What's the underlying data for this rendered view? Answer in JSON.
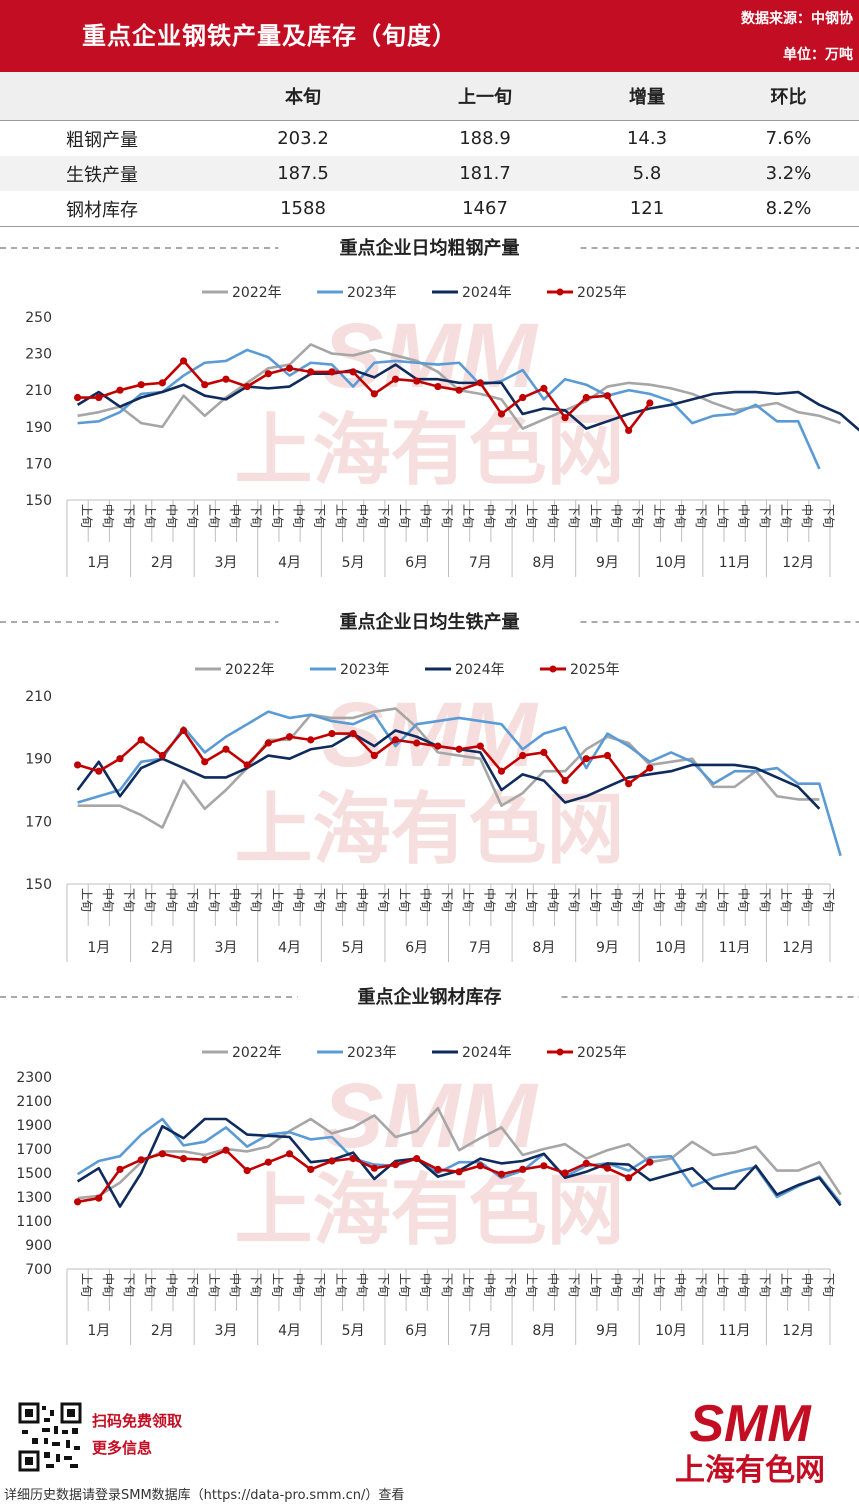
{
  "header": {
    "title": "重点企业钢铁产量及库存（旬度）",
    "source": "数据来源：中钢协",
    "unit": "单位：万吨"
  },
  "summary": {
    "columns": [
      "",
      "本旬",
      "上一旬",
      "增量",
      "环比"
    ],
    "rows": [
      {
        "name": "粗钢产量",
        "current": "203.2",
        "previous": "188.9",
        "delta": "14.3",
        "ratio": "7.6%"
      },
      {
        "name": "生铁产量",
        "current": "187.5",
        "previous": "181.7",
        "delta": "5.8",
        "ratio": "3.2%"
      },
      {
        "name": "钢材库存",
        "current": "1588",
        "previous": "1467",
        "delta": "121",
        "ratio": "8.2%"
      }
    ]
  },
  "colors": {
    "brand": "#c30d23",
    "y2022": "#a6a6a6",
    "y2023": "#5b9bd5",
    "y2024": "#0f2a5c",
    "y2025": "#c00000"
  },
  "xaxis": {
    "ten_day": [
      "上旬",
      "中旬",
      "下旬"
    ],
    "months": [
      "1月",
      "2月",
      "3月",
      "4月",
      "5月",
      "6月",
      "7月",
      "8月",
      "9月",
      "10月",
      "11月",
      "12月"
    ]
  },
  "watermark": {
    "brand": "SMM",
    "cn": "上海有色网"
  },
  "chart_data": [
    {
      "type": "line",
      "title": "重点企业日均粗钢产量",
      "ylim": [
        150,
        250
      ],
      "yticks": [
        150,
        170,
        190,
        210,
        230,
        250
      ],
      "legend": "top",
      "series": [
        {
          "name": "2022年",
          "values": [
            196,
            198,
            201,
            192,
            190,
            207,
            196,
            206,
            214,
            222,
            224,
            235,
            230,
            229,
            232,
            229,
            226,
            220,
            210,
            208,
            205,
            189,
            194,
            199,
            204,
            212,
            214,
            213,
            211,
            208,
            203,
            199,
            201,
            203,
            198,
            196,
            192
          ]
        },
        {
          "name": "2023年",
          "values": [
            192,
            193,
            198,
            208,
            209,
            218,
            225,
            226,
            232,
            228,
            218,
            225,
            224,
            212,
            225,
            226,
            225,
            224,
            225,
            213,
            215,
            221,
            205,
            216,
            213,
            207,
            210,
            208,
            204,
            192,
            196,
            197,
            202,
            193,
            193,
            167
          ]
        },
        {
          "name": "2024年",
          "values": [
            202,
            209,
            201,
            206,
            209,
            213,
            207,
            205,
            212,
            211,
            212,
            219,
            219,
            221,
            217,
            224,
            216,
            216,
            214,
            214,
            214,
            197,
            200,
            199,
            189,
            193,
            197,
            200,
            202,
            205,
            208,
            209,
            209,
            208,
            209,
            202,
            197,
            187
          ]
        },
        {
          "name": "2025年",
          "values": [
            206,
            206,
            210,
            213,
            214,
            226,
            213,
            216,
            212,
            219,
            222,
            220,
            220,
            220,
            208,
            216,
            215,
            212,
            210,
            214,
            197,
            206,
            211,
            195,
            206,
            207,
            188,
            203
          ]
        }
      ]
    },
    {
      "type": "line",
      "title": "重点企业日均生铁产量",
      "ylim": [
        150,
        210
      ],
      "yticks": [
        150,
        170,
        190,
        210
      ],
      "legend": "top",
      "series": [
        {
          "name": "2022年",
          "values": [
            175,
            175,
            175,
            172,
            168,
            183,
            174,
            180,
            187,
            196,
            196,
            204,
            203,
            203,
            205,
            206,
            200,
            192,
            191,
            190,
            175,
            179,
            186,
            186,
            193,
            197,
            195,
            188,
            189,
            190,
            181,
            181,
            186,
            178,
            177,
            177
          ]
        },
        {
          "name": "2023年",
          "values": [
            176,
            178,
            180,
            189,
            190,
            200,
            192,
            197,
            201,
            205,
            203,
            204,
            202,
            201,
            204,
            194,
            201,
            202,
            203,
            202,
            201,
            193,
            198,
            200,
            187,
            198,
            194,
            189,
            192,
            189,
            182,
            186,
            186,
            187,
            182,
            182,
            159
          ]
        },
        {
          "name": "2024年",
          "values": [
            180,
            189,
            178,
            187,
            190,
            187,
            184,
            184,
            187,
            191,
            190,
            193,
            194,
            198,
            194,
            199,
            197,
            194,
            193,
            192,
            180,
            185,
            183,
            176,
            178,
            181,
            184,
            185,
            186,
            188,
            188,
            188,
            187,
            184,
            181,
            174
          ]
        },
        {
          "name": "2025年",
          "values": [
            188,
            186,
            190,
            196,
            191,
            199,
            189,
            193,
            188,
            195,
            197,
            196,
            198,
            198,
            191,
            196,
            195,
            194,
            193,
            194,
            186,
            191,
            192,
            183,
            190,
            191,
            182,
            187
          ]
        }
      ]
    },
    {
      "type": "line",
      "title": "重点企业钢材库存",
      "ylim": [
        700,
        2300
      ],
      "yticks": [
        700,
        900,
        1100,
        1300,
        1500,
        1700,
        1900,
        2100,
        2300
      ],
      "legend": "top",
      "series": [
        {
          "name": "2022年",
          "values": [
            1290,
            1310,
            1420,
            1590,
            1680,
            1680,
            1650,
            1700,
            1680,
            1720,
            1850,
            1950,
            1830,
            1880,
            1980,
            1800,
            1850,
            2040,
            1690,
            1790,
            1880,
            1650,
            1700,
            1740,
            1620,
            1690,
            1740,
            1590,
            1620,
            1760,
            1650,
            1670,
            1720,
            1520,
            1520,
            1590,
            1320
          ]
        },
        {
          "name": "2023年",
          "values": [
            1490,
            1600,
            1640,
            1820,
            1950,
            1730,
            1760,
            1880,
            1720,
            1820,
            1840,
            1780,
            1800,
            1620,
            1570,
            1560,
            1620,
            1500,
            1590,
            1590,
            1460,
            1520,
            1660,
            1470,
            1560,
            1580,
            1520,
            1630,
            1640,
            1390,
            1460,
            1510,
            1550,
            1300,
            1390,
            1470,
            1250
          ]
        },
        {
          "name": "2024年",
          "values": [
            1430,
            1540,
            1220,
            1500,
            1890,
            1790,
            1950,
            1950,
            1820,
            1810,
            1800,
            1590,
            1610,
            1670,
            1450,
            1600,
            1620,
            1470,
            1520,
            1620,
            1580,
            1600,
            1660,
            1460,
            1510,
            1580,
            1570,
            1440,
            1490,
            1540,
            1370,
            1370,
            1560,
            1320,
            1400,
            1460,
            1230
          ]
        },
        {
          "name": "2025年",
          "values": [
            1260,
            1290,
            1530,
            1610,
            1660,
            1620,
            1610,
            1690,
            1520,
            1590,
            1660,
            1530,
            1600,
            1620,
            1540,
            1570,
            1620,
            1530,
            1510,
            1560,
            1490,
            1530,
            1560,
            1500,
            1580,
            1540,
            1460,
            1590
          ]
        }
      ]
    }
  ],
  "footer": {
    "qr_cta_1": "扫码免费领取",
    "qr_cta_2": "更多信息",
    "note": "详细历史数据请登录SMM数据库（https://data-pro.smm.cn/）查看",
    "logo_text": "SMM",
    "logo_cn": "上海有色网"
  }
}
